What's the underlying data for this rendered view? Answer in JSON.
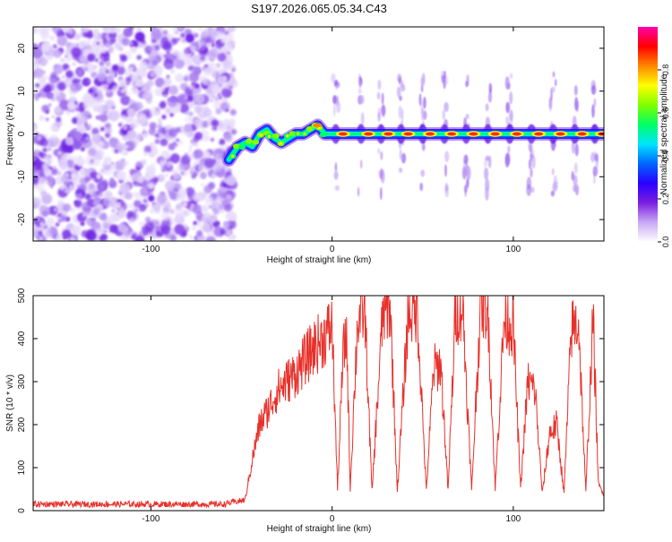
{
  "title": "S197.2026.065.05.34.C43",
  "chart_data": [
    {
      "type": "heatmap",
      "title": "S197.2026.065.05.34.C43",
      "xlabel": "Height of straight line (km)",
      "ylabel": "Frequency (Hz)",
      "xlim": [
        -165,
        150
      ],
      "ylim": [
        -25,
        25
      ],
      "xticks": [
        -100,
        0,
        100
      ],
      "yticks": [
        -20,
        -10,
        0,
        10,
        20
      ],
      "colorbar": {
        "label": "Normalized spectral amplitude",
        "range": [
          0,
          1
        ],
        "ticks": [
          "0.0",
          "0.2",
          "0.4",
          "0.6",
          "0.8"
        ],
        "colors": [
          "#ffffff",
          "#c9a8f5",
          "#7b1fe0",
          "#2a00ff",
          "#0066ff",
          "#00e5ff",
          "#00ff66",
          "#7fff00",
          "#ffff00",
          "#ff8800",
          "#ff0000",
          "#ff00aa"
        ]
      },
      "noise_region_x": [
        -165,
        -57
      ],
      "signal_onset_km": -57,
      "frequency_track": {
        "x": [
          -57,
          -52,
          -48,
          -44,
          -40,
          -36,
          -32,
          -28,
          -24,
          -20,
          -16,
          -12,
          -8,
          -4,
          0,
          10,
          20,
          30,
          40,
          50,
          60,
          70,
          80,
          90,
          100,
          110,
          120,
          130,
          140,
          150
        ],
        "y": [
          -6,
          -3,
          -2,
          -3,
          0,
          1,
          -1,
          -2,
          -1,
          0,
          0,
          1,
          2,
          0,
          0,
          0,
          0,
          0,
          0,
          0,
          0,
          0,
          0,
          0,
          0,
          0,
          0,
          0,
          0,
          0
        ]
      },
      "peak_lobes_x": [
        2,
        16,
        27,
        38,
        50,
        62,
        74,
        86,
        98,
        110,
        122,
        134,
        145
      ]
    },
    {
      "type": "line",
      "xlabel": "Height of straight line (km)",
      "ylabel": "SNR (10 * v/v)",
      "xlim": [
        -165,
        150
      ],
      "ylim": [
        0,
        500
      ],
      "xticks": [
        -100,
        0,
        100
      ],
      "yticks": [
        0,
        100,
        200,
        300,
        400,
        500
      ],
      "series": [
        {
          "name": "SNR",
          "color": "#e8302a",
          "x": [
            -165,
            -60,
            -48,
            -44,
            -40,
            -36,
            -30,
            -25,
            -20,
            -15,
            -10,
            -5,
            0,
            3,
            6,
            8,
            10,
            14,
            18,
            22,
            28,
            32,
            36,
            42,
            47,
            52,
            56,
            60,
            64,
            68,
            72,
            77,
            82,
            86,
            90,
            95,
            100,
            104,
            108,
            112,
            116,
            120,
            124,
            128,
            132,
            136,
            140,
            144,
            147,
            150
          ],
          "values": [
            15,
            15,
            25,
            120,
            200,
            230,
            280,
            300,
            320,
            350,
            380,
            400,
            430,
            50,
            360,
            410,
            50,
            440,
            470,
            45,
            460,
            480,
            45,
            460,
            470,
            45,
            330,
            340,
            45,
            460,
            480,
            45,
            490,
            470,
            50,
            450,
            430,
            50,
            300,
            280,
            40,
            180,
            200,
            40,
            420,
            440,
            40,
            450,
            60,
            40
          ]
        }
      ]
    }
  ]
}
